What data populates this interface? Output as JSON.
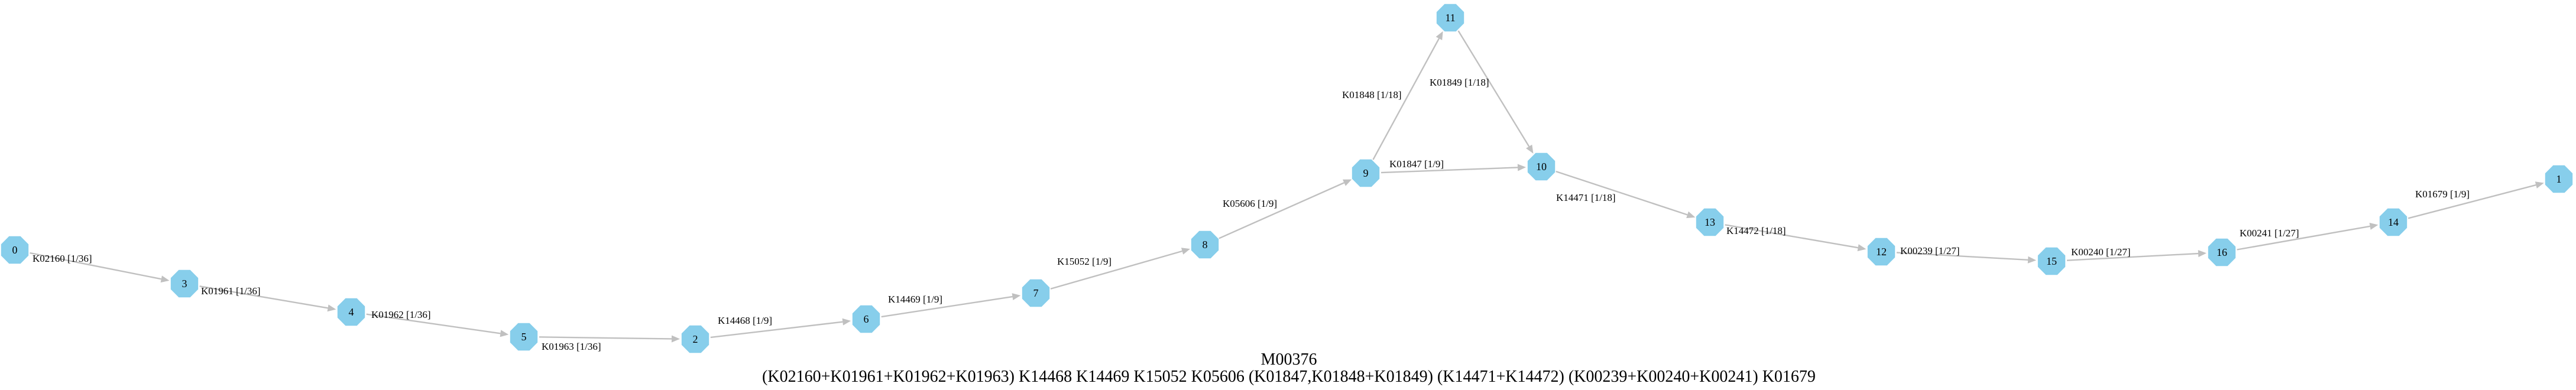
{
  "colors": {
    "node_fill": "#87ceeb",
    "edge": "#c0c0c0",
    "text": "#000000",
    "background": "#ffffff"
  },
  "caption": {
    "module_id": "M00376",
    "definition": "(K02160+K01961+K01962+K01963) K14468 K14469 K15052 K05606 (K01847,K01848+K01849) (K14471+K14472) (K00239+K00240+K00241) K01679"
  },
  "nodes": [
    {
      "id": "0",
      "label": "0"
    },
    {
      "id": "3",
      "label": "3"
    },
    {
      "id": "4",
      "label": "4"
    },
    {
      "id": "5",
      "label": "5"
    },
    {
      "id": "2",
      "label": "2"
    },
    {
      "id": "6",
      "label": "6"
    },
    {
      "id": "7",
      "label": "7"
    },
    {
      "id": "8",
      "label": "8"
    },
    {
      "id": "9",
      "label": "9"
    },
    {
      "id": "11",
      "label": "11"
    },
    {
      "id": "10",
      "label": "10"
    },
    {
      "id": "13",
      "label": "13"
    },
    {
      "id": "12",
      "label": "12"
    },
    {
      "id": "15",
      "label": "15"
    },
    {
      "id": "16",
      "label": "16"
    },
    {
      "id": "14",
      "label": "14"
    },
    {
      "id": "1",
      "label": "1"
    }
  ],
  "edges": [
    {
      "from": "0",
      "to": "3",
      "label": "K02160 [1/36]"
    },
    {
      "from": "3",
      "to": "4",
      "label": "K01961 [1/36]"
    },
    {
      "from": "4",
      "to": "5",
      "label": "K01962 [1/36]"
    },
    {
      "from": "5",
      "to": "2",
      "label": "K01963 [1/36]"
    },
    {
      "from": "2",
      "to": "6",
      "label": "K14468 [1/9]"
    },
    {
      "from": "6",
      "to": "7",
      "label": "K14469 [1/9]"
    },
    {
      "from": "7",
      "to": "8",
      "label": "K15052 [1/9]"
    },
    {
      "from": "8",
      "to": "9",
      "label": "K05606 [1/9]"
    },
    {
      "from": "9",
      "to": "11",
      "label": "K01848 [1/18]"
    },
    {
      "from": "11",
      "to": "10",
      "label": "K01849 [1/18]"
    },
    {
      "from": "9",
      "to": "10",
      "label": "K01847 [1/9]"
    },
    {
      "from": "10",
      "to": "13",
      "label": "K14471 [1/18]"
    },
    {
      "from": "13",
      "to": "12",
      "label": "K14472 [1/18]"
    },
    {
      "from": "12",
      "to": "15",
      "label": "K00239 [1/27]"
    },
    {
      "from": "15",
      "to": "16",
      "label": "K00240 [1/27]"
    },
    {
      "from": "16",
      "to": "14",
      "label": "K00241 [1/27]"
    },
    {
      "from": "14",
      "to": "1",
      "label": "K01679 [1/9]"
    }
  ]
}
